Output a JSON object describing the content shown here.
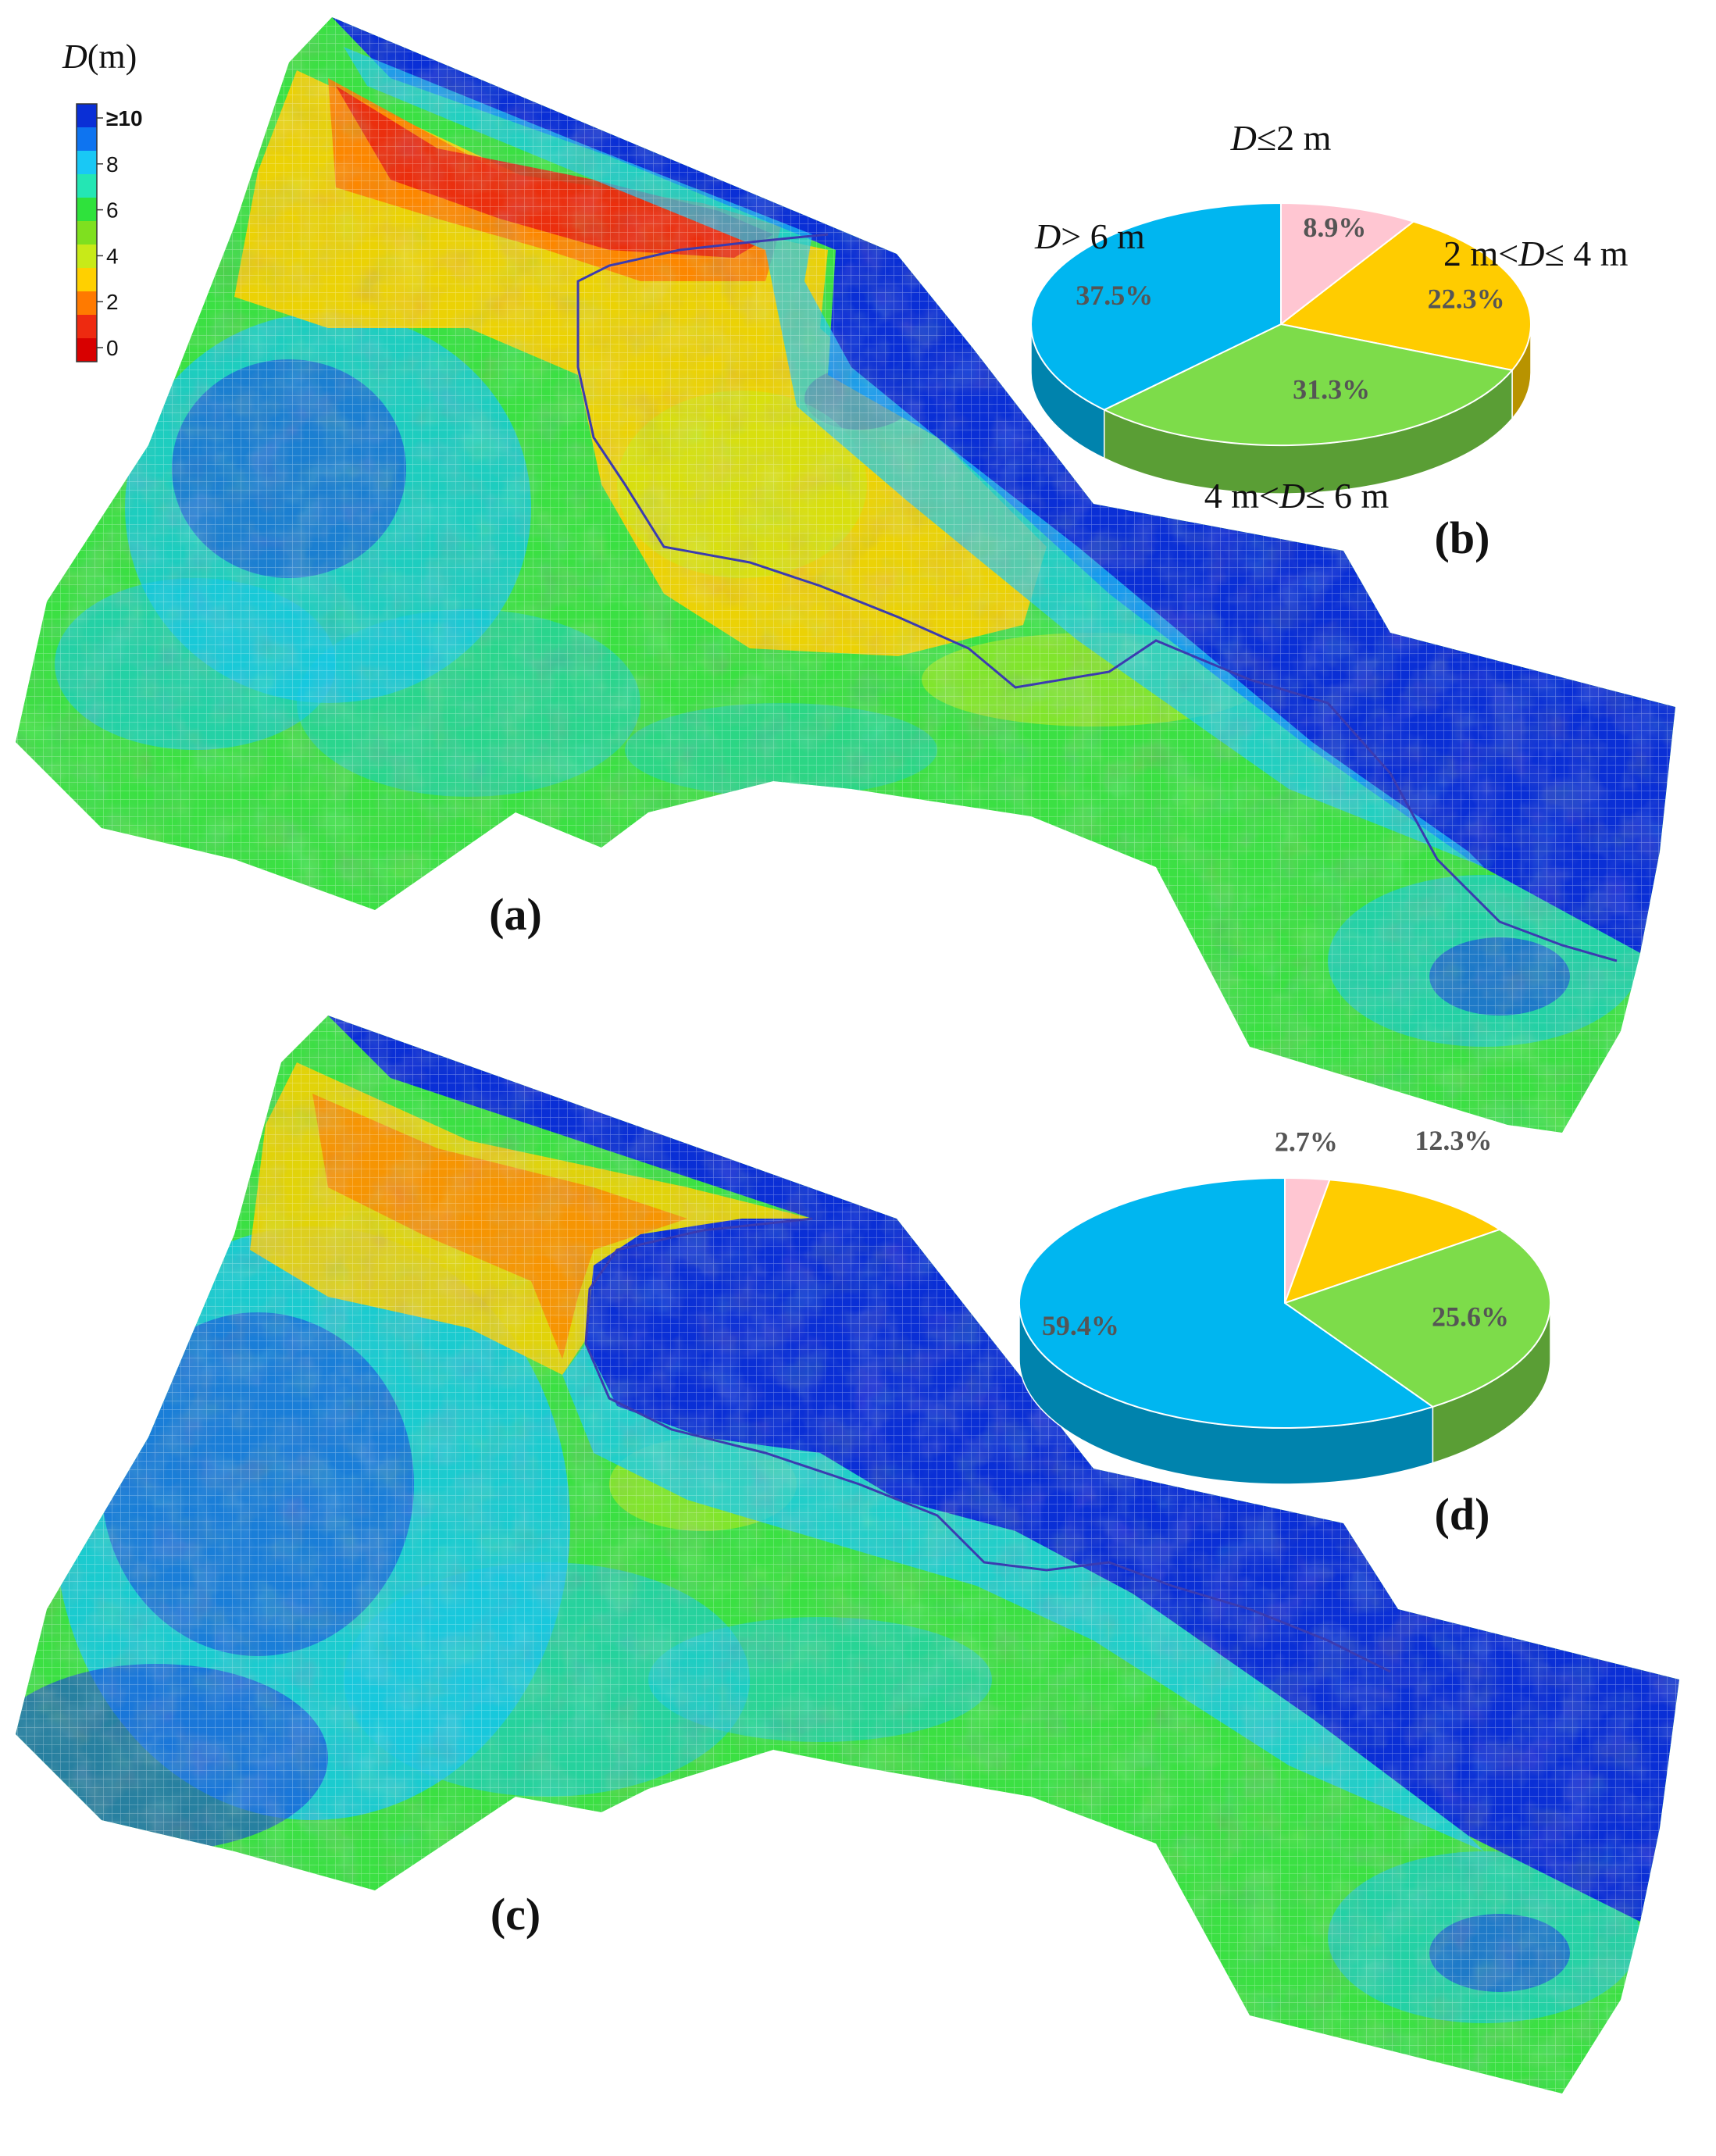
{
  "colorbar": {
    "title_var": "D",
    "title_unit": "(m)",
    "ticks": [
      "≥10",
      "8",
      "6",
      "4",
      "2",
      "0"
    ],
    "colors": [
      "#0a2fd6",
      "#0e74f0",
      "#19c8f5",
      "#24e6b4",
      "#2fe23c",
      "#7fe01f",
      "#c8ea18",
      "#ffd000",
      "#ff7a00",
      "#ee2a10",
      "#d80000"
    ]
  },
  "panels": {
    "a": "(a)",
    "b": "(b)",
    "c": "(c)",
    "d": "(d)"
  },
  "chart_data": [
    {
      "id": "b",
      "type": "pie",
      "title": "",
      "slices": [
        {
          "label": "D≤2 m",
          "label_var": "D",
          "label_rest": "≤2 m",
          "value": 8.9,
          "pct_label": "8.9%",
          "color": "#ffc6d2"
        },
        {
          "label": "2 m<D≤ 4 m",
          "label_pre": "2 m<",
          "label_var": "D",
          "label_rest": "≤ 4 m",
          "value": 22.3,
          "pct_label": "22.3%",
          "color": "#ffcc00"
        },
        {
          "label": "4 m<D≤ 6 m",
          "label_pre": "4 m<",
          "label_var": "D",
          "label_rest": "≤ 6 m",
          "value": 31.3,
          "pct_label": "31.3%",
          "color": "#7ddc4a"
        },
        {
          "label": "D> 6 m",
          "label_var": "D",
          "label_rest": "> 6 m",
          "value": 37.5,
          "pct_label": "37.5%",
          "color": "#00b6f0"
        }
      ]
    },
    {
      "id": "d",
      "type": "pie",
      "title": "",
      "slices": [
        {
          "label": "D≤2 m",
          "value": 2.7,
          "pct_label": "2.7%",
          "color": "#ffc6d2"
        },
        {
          "label": "2 m<D≤ 4 m",
          "value": 12.3,
          "pct_label": "12.3%",
          "color": "#ffcc00"
        },
        {
          "label": "4 m<D≤ 6 m",
          "value": 25.6,
          "pct_label": "25.6%",
          "color": "#7ddc4a"
        },
        {
          "label": "D> 6 m",
          "value": 59.4,
          "pct_label": "59.4%",
          "color": "#00b6f0"
        }
      ]
    }
  ]
}
